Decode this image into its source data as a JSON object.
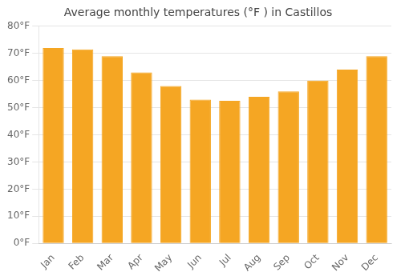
{
  "chart_data": {
    "type": "bar",
    "title": "Average monthly temperatures (°F ) in Castillos",
    "categories": [
      "Jan",
      "Feb",
      "Mar",
      "Apr",
      "May",
      "Jun",
      "Jul",
      "Aug",
      "Sep",
      "Oct",
      "Nov",
      "Dec"
    ],
    "values": [
      72,
      71.5,
      69,
      63,
      58,
      53,
      52.5,
      54,
      56,
      60,
      64,
      69
    ],
    "color": "#F5A623",
    "ylim": [
      0,
      80
    ],
    "yticks": [
      {
        "value": 0,
        "label": "0°F"
      },
      {
        "value": 10,
        "label": "10°F"
      },
      {
        "value": 20,
        "label": "20°F"
      },
      {
        "value": 30,
        "label": "30°F"
      },
      {
        "value": 40,
        "label": "40°F"
      },
      {
        "value": 50,
        "label": "50°F"
      },
      {
        "value": 60,
        "label": "60°F"
      },
      {
        "value": 70,
        "label": "70°F"
      },
      {
        "value": 80,
        "label": "80°F"
      }
    ],
    "grid": true
  }
}
